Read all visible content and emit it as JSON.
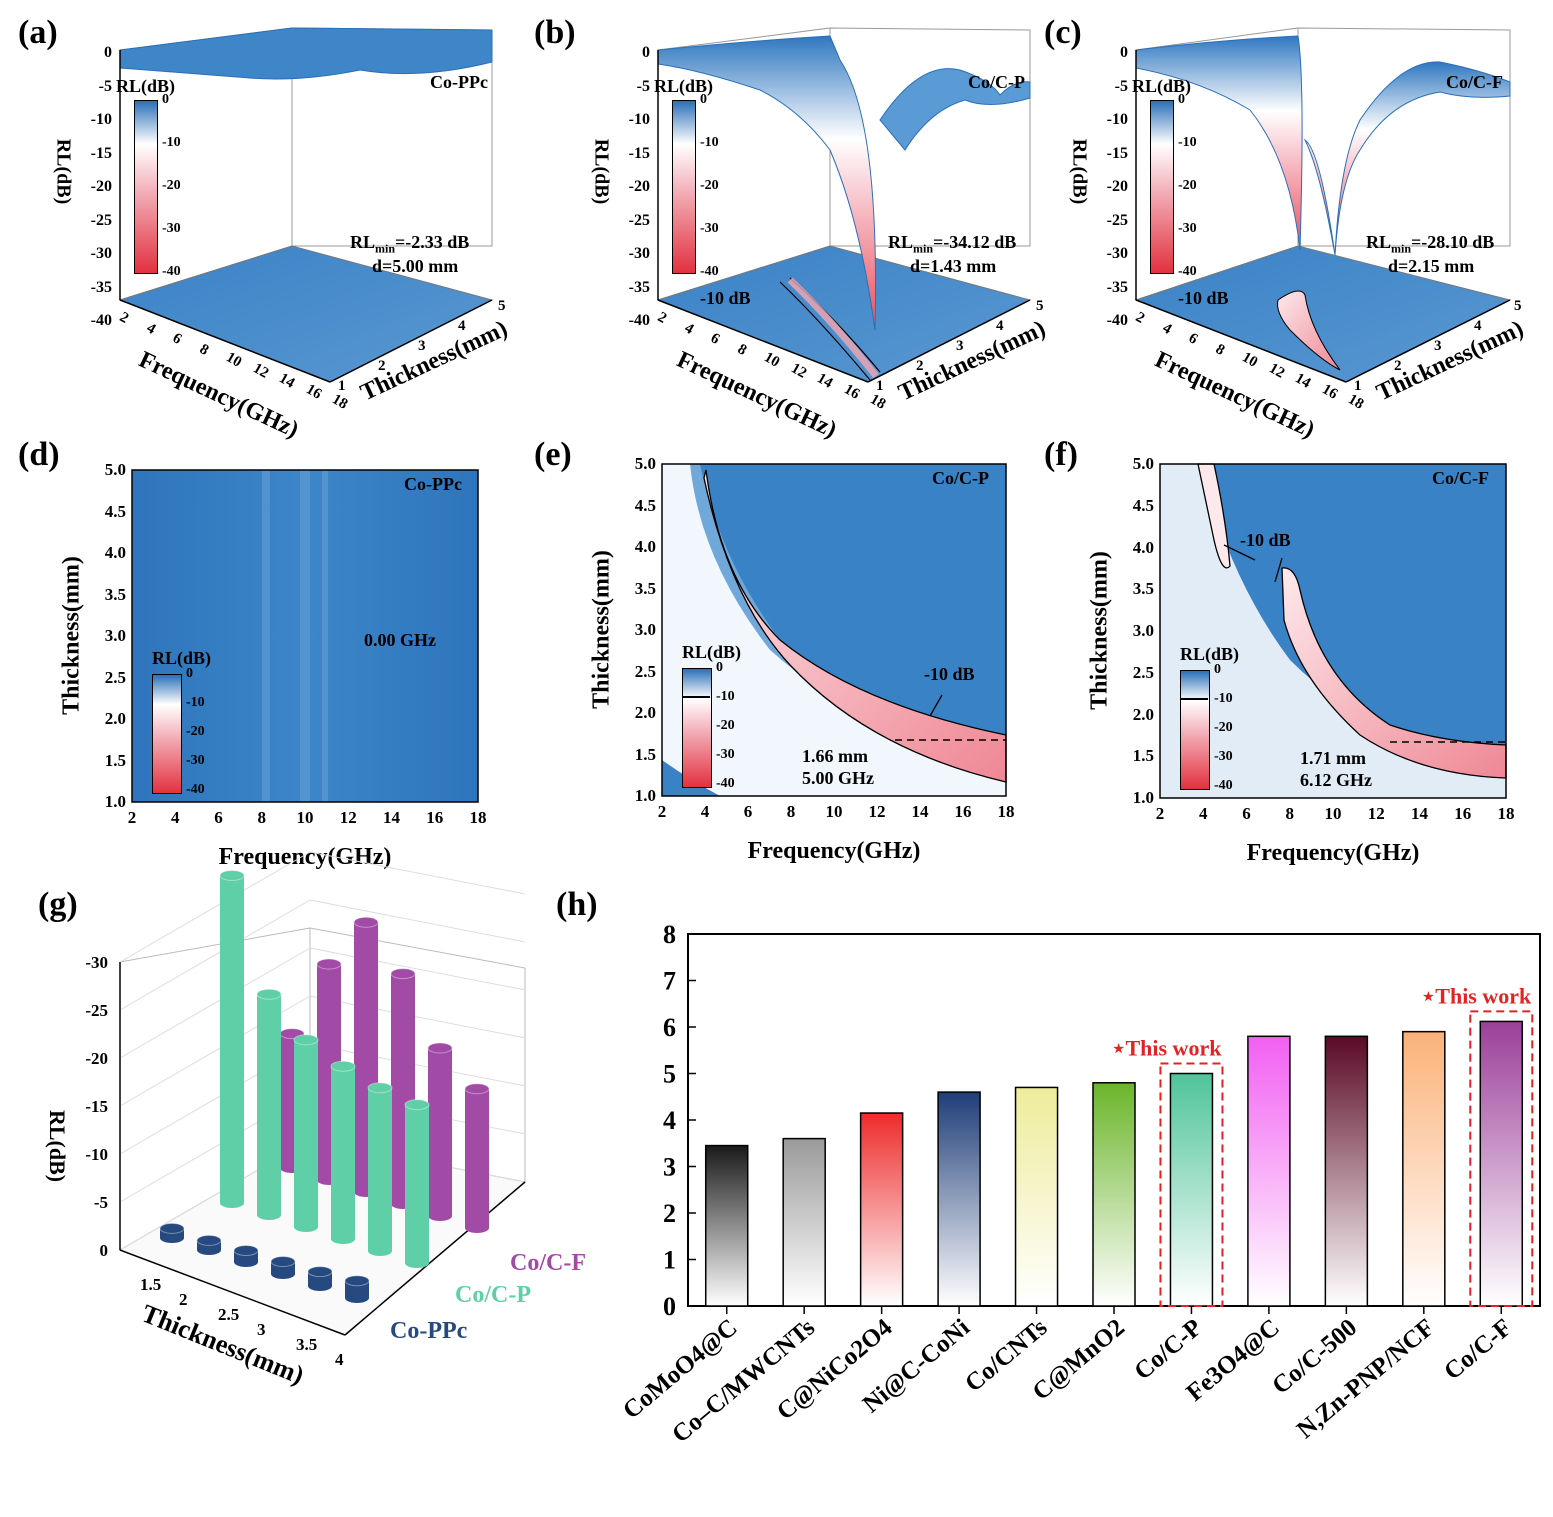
{
  "colors": {
    "blue_dark": "#2a6fb8",
    "blue": "#3a82c6",
    "white": "#ffffff",
    "pink": "#f2a8b2",
    "red": "#e3313f",
    "navy": "#26497f",
    "teal": "#5fcfa7",
    "magenta": "#a24ba6",
    "highlight_red": "#e32222"
  },
  "panels": {
    "a": {
      "letter": "(a)",
      "sample": "Co-PPc",
      "rl_min": "=-2.33 dB",
      "d": "d=5.00 mm",
      "contour": ""
    },
    "b": {
      "letter": "(b)",
      "sample": "Co/C-P",
      "rl_min": "=-34.12 dB",
      "d": "d=1.43 mm",
      "contour": "-10 dB"
    },
    "c": {
      "letter": "(c)",
      "sample": "Co/C-F",
      "rl_min": "=-28.10 dB",
      "d": "d=2.15 mm",
      "contour": "-10 dB"
    },
    "d": {
      "letter": "(d)",
      "sample": "Co-PPc",
      "eab": "0.00 GHz"
    },
    "e": {
      "letter": "(e)",
      "sample": "Co/C-P",
      "thick": "1.66 mm",
      "eab": "5.00 GHz",
      "contour": "-10 dB"
    },
    "f": {
      "letter": "(f)",
      "sample": "Co/C-F",
      "thick": "1.71 mm",
      "eab": "6.12 GHz",
      "contour": "-10 dB"
    },
    "g": {
      "letter": "(g)"
    },
    "h": {
      "letter": "(h)"
    }
  },
  "surface_axes": {
    "z_label": "RL(dB)",
    "z_ticks": [
      "0",
      "-5",
      "-10",
      "-15",
      "-20",
      "-25",
      "-30",
      "-35",
      "-40"
    ],
    "x_label": "Frequency(GHz)",
    "x_ticks": [
      "2",
      "4",
      "6",
      "8",
      "10",
      "12",
      "14",
      "16",
      "18"
    ],
    "y_label": "Thickness(mm)",
    "y_ticks": [
      "1",
      "2",
      "3",
      "4",
      "5"
    ],
    "colorbar_title": "RL(dB)",
    "colorbar_ticks": [
      "0",
      "-10",
      "-20",
      "-30",
      "-40"
    ],
    "rl_prefix": "RL",
    "rl_sub": "min"
  },
  "map_axes": {
    "x_label": "Frequency(GHz)",
    "x_ticks": [
      "2",
      "4",
      "6",
      "8",
      "10",
      "12",
      "14",
      "16",
      "18"
    ],
    "y_label": "Thickness(mm)",
    "y_ticks": [
      "1.0",
      "1.5",
      "2.0",
      "2.5",
      "3.0",
      "3.5",
      "4.0",
      "4.5",
      "5.0"
    ],
    "colorbar_title": "RL(dB)",
    "colorbar_ticks": [
      "0",
      "-10",
      "-20",
      "-30",
      "-40"
    ]
  },
  "chart_data": [
    {
      "type": "bar",
      "title": "(g)",
      "subtype": "3d-cylinder",
      "xlabel": "Thickness(mm)",
      "ylabel": "RL(dB)",
      "x": [
        "1.5",
        "2",
        "2.5",
        "3",
        "3.5",
        "4"
      ],
      "z_ticks": [
        "0",
        "-5",
        "-10",
        "-15",
        "-20",
        "-25",
        "-30"
      ],
      "series": [
        {
          "name": "Co-PPc",
          "values": [
            -1.0,
            -1.0,
            -1.2,
            -1.3,
            -1.5,
            -1.8
          ]
        },
        {
          "name": "Co/C-P",
          "values": [
            -34.12,
            -23.0,
            -19.5,
            -18.0,
            -17.0,
            -16.5
          ]
        },
        {
          "name": "Co/C-F",
          "values": [
            -14.0,
            -22.5,
            -28.1,
            -24.0,
            -17.5,
            -14.5
          ]
        }
      ]
    },
    {
      "type": "bar",
      "title": "(h)",
      "xlabel": "",
      "ylabel": "",
      "ylim": [
        0,
        8
      ],
      "y_ticks": [
        "0",
        "1",
        "2",
        "3",
        "4",
        "5",
        "6",
        "7",
        "8"
      ],
      "categories": [
        "CoMoO4@C",
        "Co–C/MWCNTs",
        "C@NiCo2O4",
        "Ni@C-CoNi",
        "Co/CNTs",
        "C@MnO2",
        "Co/C-P",
        "Fe3O4@C",
        "Co/C-500",
        "N,Zn-PNP/NCF",
        "Co/C-F"
      ],
      "values": [
        3.45,
        3.6,
        4.15,
        4.6,
        4.7,
        4.8,
        5.0,
        5.8,
        5.8,
        5.9,
        6.12
      ],
      "bar_colors": [
        "#1a1a1a",
        "#9a9a9a",
        "#ee2b2b",
        "#1f3d78",
        "#eeec9a",
        "#6bb52a",
        "#4fc49a",
        "#f25ff2",
        "#5a0a26",
        "#fbb279",
        "#9b3f99"
      ],
      "highlighted": [
        "Co/C-P",
        "Co/C-F"
      ],
      "annotation": "This work"
    }
  ]
}
